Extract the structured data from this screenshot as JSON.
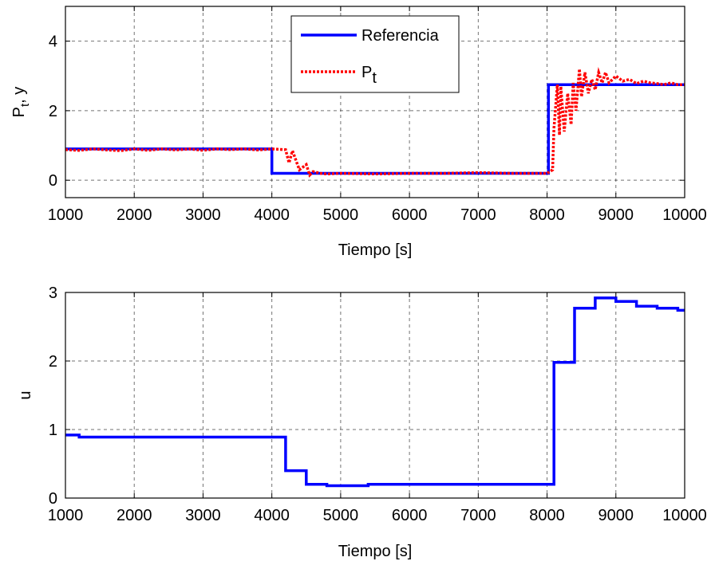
{
  "chart_data": [
    {
      "type": "line",
      "xlabel": "Tiempo [s]",
      "ylabel": "P",
      "ylabel_sub": "t",
      "ylabel_tail": ", y",
      "xlim": [
        1000,
        10000
      ],
      "ylim": [
        -0.5,
        5
      ],
      "xticks": [
        1000,
        2000,
        3000,
        4000,
        5000,
        6000,
        7000,
        8000,
        9000,
        10000
      ],
      "yticks": [
        0,
        2,
        4
      ],
      "grid": true,
      "legend_position": "top-center",
      "series": [
        {
          "name": "Referencia",
          "color": "#0000ff",
          "style": "solid",
          "x": [
            1000,
            4000,
            4000,
            8020,
            8020,
            10000
          ],
          "y": [
            0.9,
            0.9,
            0.2,
            0.2,
            2.75,
            2.75
          ]
        },
        {
          "name": "P",
          "name_sub": "t",
          "color": "#ff0000",
          "style": "dotted",
          "x": [
            1000,
            1200,
            1400,
            1600,
            1800,
            2000,
            2200,
            2400,
            2600,
            2800,
            3000,
            3200,
            3400,
            3600,
            3800,
            4000,
            4200,
            4250,
            4300,
            4400,
            4500,
            4550,
            4600,
            4700,
            4800,
            5000,
            5500,
            6000,
            6500,
            7000,
            7500,
            8000,
            8080,
            8100,
            8150,
            8180,
            8200,
            8250,
            8300,
            8350,
            8380,
            8420,
            8470,
            8500,
            8550,
            8600,
            8650,
            8700,
            8750,
            8800,
            8850,
            8900,
            9000,
            9100,
            9200,
            9300,
            9400,
            9500,
            9600,
            9700,
            9800,
            9900,
            10000
          ],
          "y": [
            0.88,
            0.86,
            0.9,
            0.87,
            0.85,
            0.9,
            0.86,
            0.9,
            0.87,
            0.9,
            0.86,
            0.9,
            0.88,
            0.9,
            0.87,
            0.9,
            0.88,
            0.5,
            0.85,
            0.3,
            0.45,
            0.15,
            0.25,
            0.2,
            0.18,
            0.2,
            0.18,
            0.2,
            0.2,
            0.22,
            0.2,
            0.2,
            0.3,
            1.5,
            2.75,
            1.3,
            2.7,
            1.4,
            2.5,
            1.6,
            2.8,
            2.0,
            3.2,
            2.4,
            3.1,
            2.5,
            2.9,
            2.6,
            3.1,
            2.8,
            3.1,
            2.8,
            3.0,
            2.85,
            2.9,
            2.78,
            2.85,
            2.8,
            2.78,
            2.75,
            2.8,
            2.75,
            2.75
          ]
        }
      ]
    },
    {
      "type": "line",
      "xlabel": "Tiempo [s]",
      "ylabel": "u",
      "xlim": [
        1000,
        10000
      ],
      "ylim": [
        0,
        3
      ],
      "xticks": [
        1000,
        2000,
        3000,
        4000,
        5000,
        6000,
        7000,
        8000,
        9000,
        10000
      ],
      "yticks": [
        0,
        1,
        2,
        3
      ],
      "grid": true,
      "series": [
        {
          "color": "#0000ff",
          "style": "solid",
          "x": [
            1000,
            1200,
            1200,
            4200,
            4200,
            4500,
            4500,
            4800,
            4800,
            5400,
            5400,
            8100,
            8100,
            8400,
            8400,
            8700,
            8700,
            9000,
            9000,
            9300,
            9300,
            9600,
            9600,
            9900,
            9900,
            10000
          ],
          "y": [
            0.92,
            0.92,
            0.89,
            0.89,
            0.4,
            0.4,
            0.2,
            0.2,
            0.18,
            0.18,
            0.2,
            0.2,
            1.98,
            1.98,
            2.77,
            2.77,
            2.92,
            2.92,
            2.87,
            2.87,
            2.8,
            2.8,
            2.77,
            2.77,
            2.74,
            2.74
          ]
        }
      ]
    }
  ]
}
